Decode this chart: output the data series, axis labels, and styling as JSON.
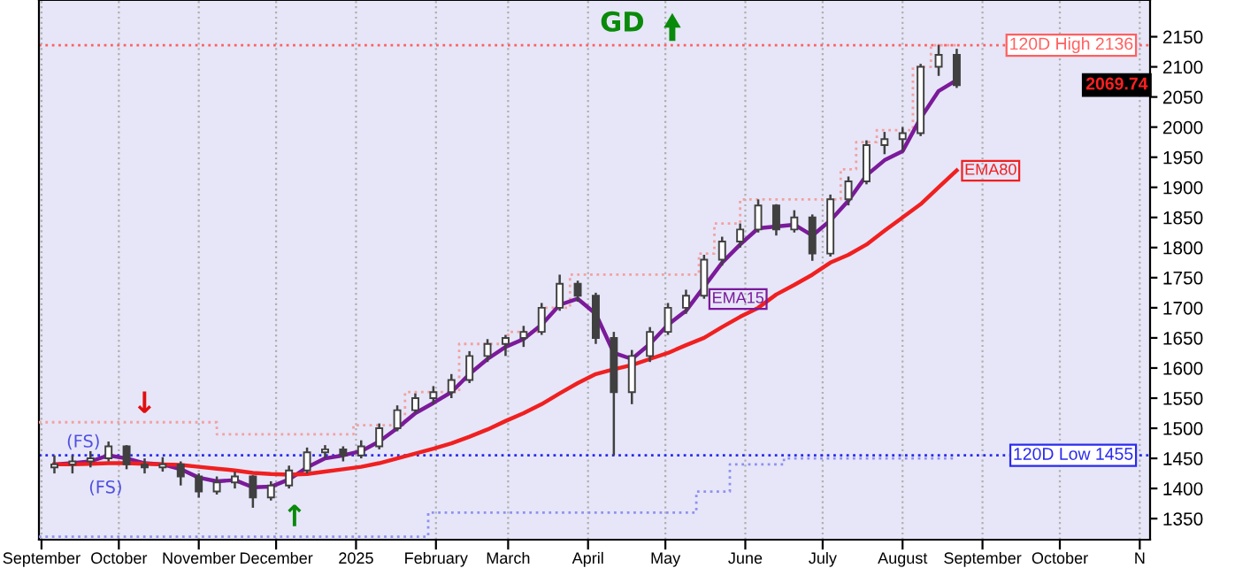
{
  "chart_data": {
    "type": "candlestick",
    "color": "#404040",
    "x": [
      "2024-09-06",
      "2024-09-13",
      "2024-09-20",
      "2024-09-27",
      "2024-10-04",
      "2024-10-11",
      "2024-10-18",
      "2024-10-25",
      "2024-11-01",
      "2024-11-08",
      "2024-11-15",
      "2024-11-22",
      "2024-11-29",
      "2024-12-06",
      "2024-12-13",
      "2024-12-20",
      "2024-12-27",
      "2025-01-03",
      "2025-01-10",
      "2025-01-17",
      "2025-01-24",
      "2025-01-31",
      "2025-02-07",
      "2025-02-14",
      "2025-02-21",
      "2025-02-28",
      "2025-03-07",
      "2025-03-14",
      "2025-03-21",
      "2025-03-28",
      "2025-04-04",
      "2025-04-11",
      "2025-04-18",
      "2025-04-25",
      "2025-05-02",
      "2025-05-09",
      "2025-05-16",
      "2025-05-23",
      "2025-05-30",
      "2025-06-06",
      "2025-06-13",
      "2025-06-20",
      "2025-06-27",
      "2025-07-04",
      "2025-07-11",
      "2025-07-18",
      "2025-07-25",
      "2025-08-01",
      "2025-08-08",
      "2025-08-15",
      "2025-08-22"
    ],
    "ohlc": [
      [
        1435,
        1455,
        1425,
        1440
      ],
      [
        1440,
        1455,
        1425,
        1445
      ],
      [
        1445,
        1462,
        1435,
        1450
      ],
      [
        1450,
        1478,
        1445,
        1470
      ],
      [
        1470,
        1472,
        1432,
        1440
      ],
      [
        1440,
        1450,
        1425,
        1435
      ],
      [
        1435,
        1452,
        1428,
        1440
      ],
      [
        1440,
        1445,
        1405,
        1420
      ],
      [
        1420,
        1425,
        1385,
        1395
      ],
      [
        1395,
        1420,
        1390,
        1410
      ],
      [
        1410,
        1428,
        1400,
        1420
      ],
      [
        1420,
        1422,
        1368,
        1385
      ],
      [
        1385,
        1412,
        1380,
        1405
      ],
      [
        1405,
        1438,
        1400,
        1430
      ],
      [
        1430,
        1468,
        1425,
        1460
      ],
      [
        1460,
        1472,
        1450,
        1465
      ],
      [
        1465,
        1470,
        1445,
        1455
      ],
      [
        1455,
        1480,
        1450,
        1470
      ],
      [
        1470,
        1508,
        1465,
        1500
      ],
      [
        1500,
        1538,
        1495,
        1530
      ],
      [
        1530,
        1558,
        1525,
        1550
      ],
      [
        1550,
        1570,
        1540,
        1560
      ],
      [
        1560,
        1590,
        1550,
        1580
      ],
      [
        1580,
        1628,
        1575,
        1620
      ],
      [
        1620,
        1648,
        1610,
        1640
      ],
      [
        1640,
        1655,
        1620,
        1650
      ],
      [
        1650,
        1670,
        1635,
        1660
      ],
      [
        1660,
        1708,
        1655,
        1700
      ],
      [
        1700,
        1755,
        1695,
        1740
      ],
      [
        1740,
        1745,
        1710,
        1720
      ],
      [
        1720,
        1725,
        1640,
        1650
      ],
      [
        1650,
        1660,
        1455,
        1560
      ],
      [
        1560,
        1630,
        1540,
        1620
      ],
      [
        1620,
        1668,
        1610,
        1660
      ],
      [
        1660,
        1708,
        1655,
        1700
      ],
      [
        1700,
        1730,
        1690,
        1720
      ],
      [
        1720,
        1788,
        1715,
        1780
      ],
      [
        1780,
        1818,
        1770,
        1810
      ],
      [
        1810,
        1840,
        1800,
        1830
      ],
      [
        1830,
        1880,
        1825,
        1870
      ],
      [
        1870,
        1872,
        1820,
        1830
      ],
      [
        1830,
        1862,
        1825,
        1850
      ],
      [
        1850,
        1855,
        1778,
        1790
      ],
      [
        1790,
        1888,
        1785,
        1880
      ],
      [
        1880,
        1918,
        1870,
        1910
      ],
      [
        1910,
        1978,
        1905,
        1970
      ],
      [
        1970,
        1992,
        1955,
        1980
      ],
      [
        1980,
        2000,
        1960,
        1990
      ],
      [
        1990,
        2105,
        1985,
        2100
      ],
      [
        2100,
        2136,
        2085,
        2120
      ],
      [
        2120,
        2130,
        2065,
        2069.74
      ]
    ],
    "series": [
      {
        "name": "EMA15",
        "type": "line",
        "color": "#7b1a9a",
        "values": [
          1440,
          1442,
          1445,
          1455,
          1450,
          1442,
          1440,
          1432,
          1418,
          1412,
          1414,
          1402,
          1403,
          1415,
          1435,
          1450,
          1455,
          1462,
          1478,
          1500,
          1525,
          1542,
          1560,
          1590,
          1615,
          1635,
          1648,
          1672,
          1705,
          1715,
          1690,
          1625,
          1615,
          1640,
          1672,
          1695,
          1735,
          1775,
          1805,
          1832,
          1835,
          1838,
          1820,
          1845,
          1878,
          1920,
          1945,
          1960,
          2015,
          2060,
          2078
        ]
      },
      {
        "name": "EMA80",
        "type": "line",
        "color": "#f02020",
        "values": [
          1440,
          1440,
          1441,
          1442,
          1442,
          1441,
          1440,
          1439,
          1436,
          1433,
          1430,
          1426,
          1424,
          1423,
          1424,
          1428,
          1432,
          1436,
          1442,
          1450,
          1458,
          1466,
          1475,
          1486,
          1498,
          1512,
          1525,
          1540,
          1558,
          1575,
          1590,
          1598,
          1605,
          1615,
          1625,
          1638,
          1650,
          1668,
          1685,
          1700,
          1722,
          1738,
          1755,
          1775,
          1788,
          1805,
          1828,
          1850,
          1872,
          1900,
          1928
        ]
      },
      {
        "type": "step",
        "color": "#f4a0a0",
        "line_style": "dotted",
        "x": [
          "2024-08-31",
          "2024-11-08",
          "2024-12-31",
          "2025-01-20",
          "2025-02-10",
          "2025-03-01",
          "2025-03-14",
          "2025-03-25",
          "2025-05-14",
          "2025-05-20",
          "2025-05-30",
          "2025-07-08",
          "2025-07-14",
          "2025-07-22",
          "2025-08-05",
          "2025-08-12",
          "2025-08-22"
        ],
        "values": [
          1510,
          1490,
          1505,
          1560,
          1640,
          1660,
          1700,
          1755,
          1790,
          1840,
          1880,
          1930,
          1975,
          1995,
          2100,
          2136,
          2136
        ]
      },
      {
        "type": "step",
        "color": "#9090f0",
        "line_style": "dotted",
        "x": [
          "2024-08-31",
          "2025-01-29",
          "2025-05-13",
          "2025-05-26",
          "2025-06-16",
          "2025-08-22"
        ],
        "values": [
          1320,
          1360,
          1395,
          1440,
          1450,
          1450
        ]
      }
    ],
    "xlim": [
      "2024-08-31",
      "2025-11-05"
    ],
    "xticks": [
      {
        "value": "2024-09-01",
        "label": "September"
      },
      {
        "value": "2024-10-01",
        "label": "October"
      },
      {
        "value": "2024-11-01",
        "label": "November"
      },
      {
        "value": "2024-12-01",
        "label": "December"
      },
      {
        "value": "2025-01-01",
        "label": "2025"
      },
      {
        "value": "2025-02-01",
        "label": "February"
      },
      {
        "value": "2025-03-01",
        "label": "March"
      },
      {
        "value": "2025-04-01",
        "label": "April"
      },
      {
        "value": "2025-05-01",
        "label": "May"
      },
      {
        "value": "2025-06-01",
        "label": "June"
      },
      {
        "value": "2025-07-01",
        "label": "July"
      },
      {
        "value": "2025-08-01",
        "label": "August"
      },
      {
        "value": "2025-09-01",
        "label": "September"
      },
      {
        "value": "2025-10-01",
        "label": "October"
      },
      {
        "value": "2025-11-01",
        "label": "N"
      }
    ],
    "ylim": [
      1315,
      2211
    ],
    "yticks": [
      1350,
      1400,
      1450,
      1500,
      1550,
      1600,
      1650,
      1700,
      1750,
      1800,
      1850,
      1900,
      1950,
      2000,
      2050,
      2100,
      2150
    ],
    "grid": "x",
    "ref_lines": [
      {
        "axis": "y",
        "value": 2136,
        "label": "120D High 2136",
        "color": "#ff6060",
        "line_style": "dotted"
      },
      {
        "axis": "y",
        "value": 1455,
        "label": "120D Low 1455",
        "color": "#2a2af0",
        "line_style": "dotted"
      }
    ],
    "annotations": [
      "GD",
      "(FS)",
      "(FS)",
      "↓",
      "↑",
      "2069.74"
    ]
  }
}
